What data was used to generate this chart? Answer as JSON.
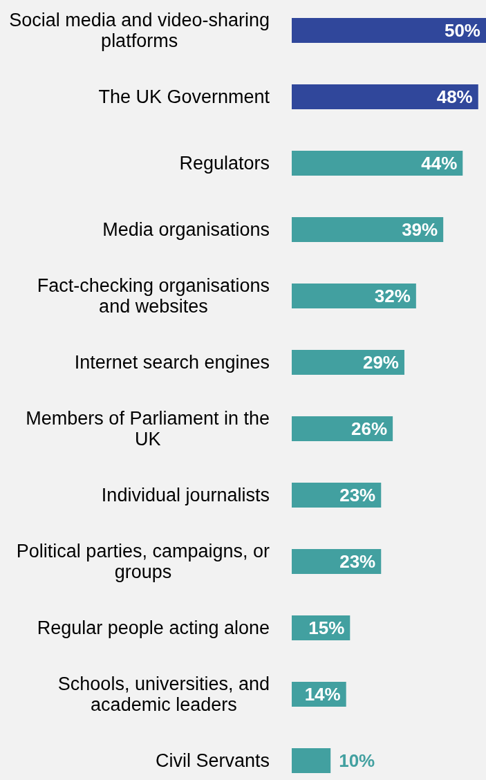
{
  "chart_data": {
    "type": "bar",
    "orientation": "horizontal",
    "categories": [
      "Social media and video-sharing platforms",
      "The UK Government",
      "Regulators",
      "Media organisations",
      "Fact-checking organisations and websites",
      "Internet search engines",
      "Members of Parliament in the UK",
      "Individual journalists",
      "Political parties, campaigns, or groups",
      "Regular people acting alone",
      "Schools, universities, and academic leaders",
      "Civil Servants"
    ],
    "values": [
      50,
      48,
      44,
      39,
      32,
      29,
      26,
      23,
      23,
      15,
      14,
      10
    ],
    "value_labels": [
      "50%",
      "48%",
      "44%",
      "39%",
      "32%",
      "29%",
      "26%",
      "23%",
      "23%",
      "15%",
      "14%",
      "10%"
    ],
    "colors": [
      "#30479b",
      "#30479b",
      "#42a0a0",
      "#42a0a0",
      "#42a0a0",
      "#42a0a0",
      "#42a0a0",
      "#42a0a0",
      "#42a0a0",
      "#42a0a0",
      "#42a0a0",
      "#42a0a0"
    ]
  }
}
